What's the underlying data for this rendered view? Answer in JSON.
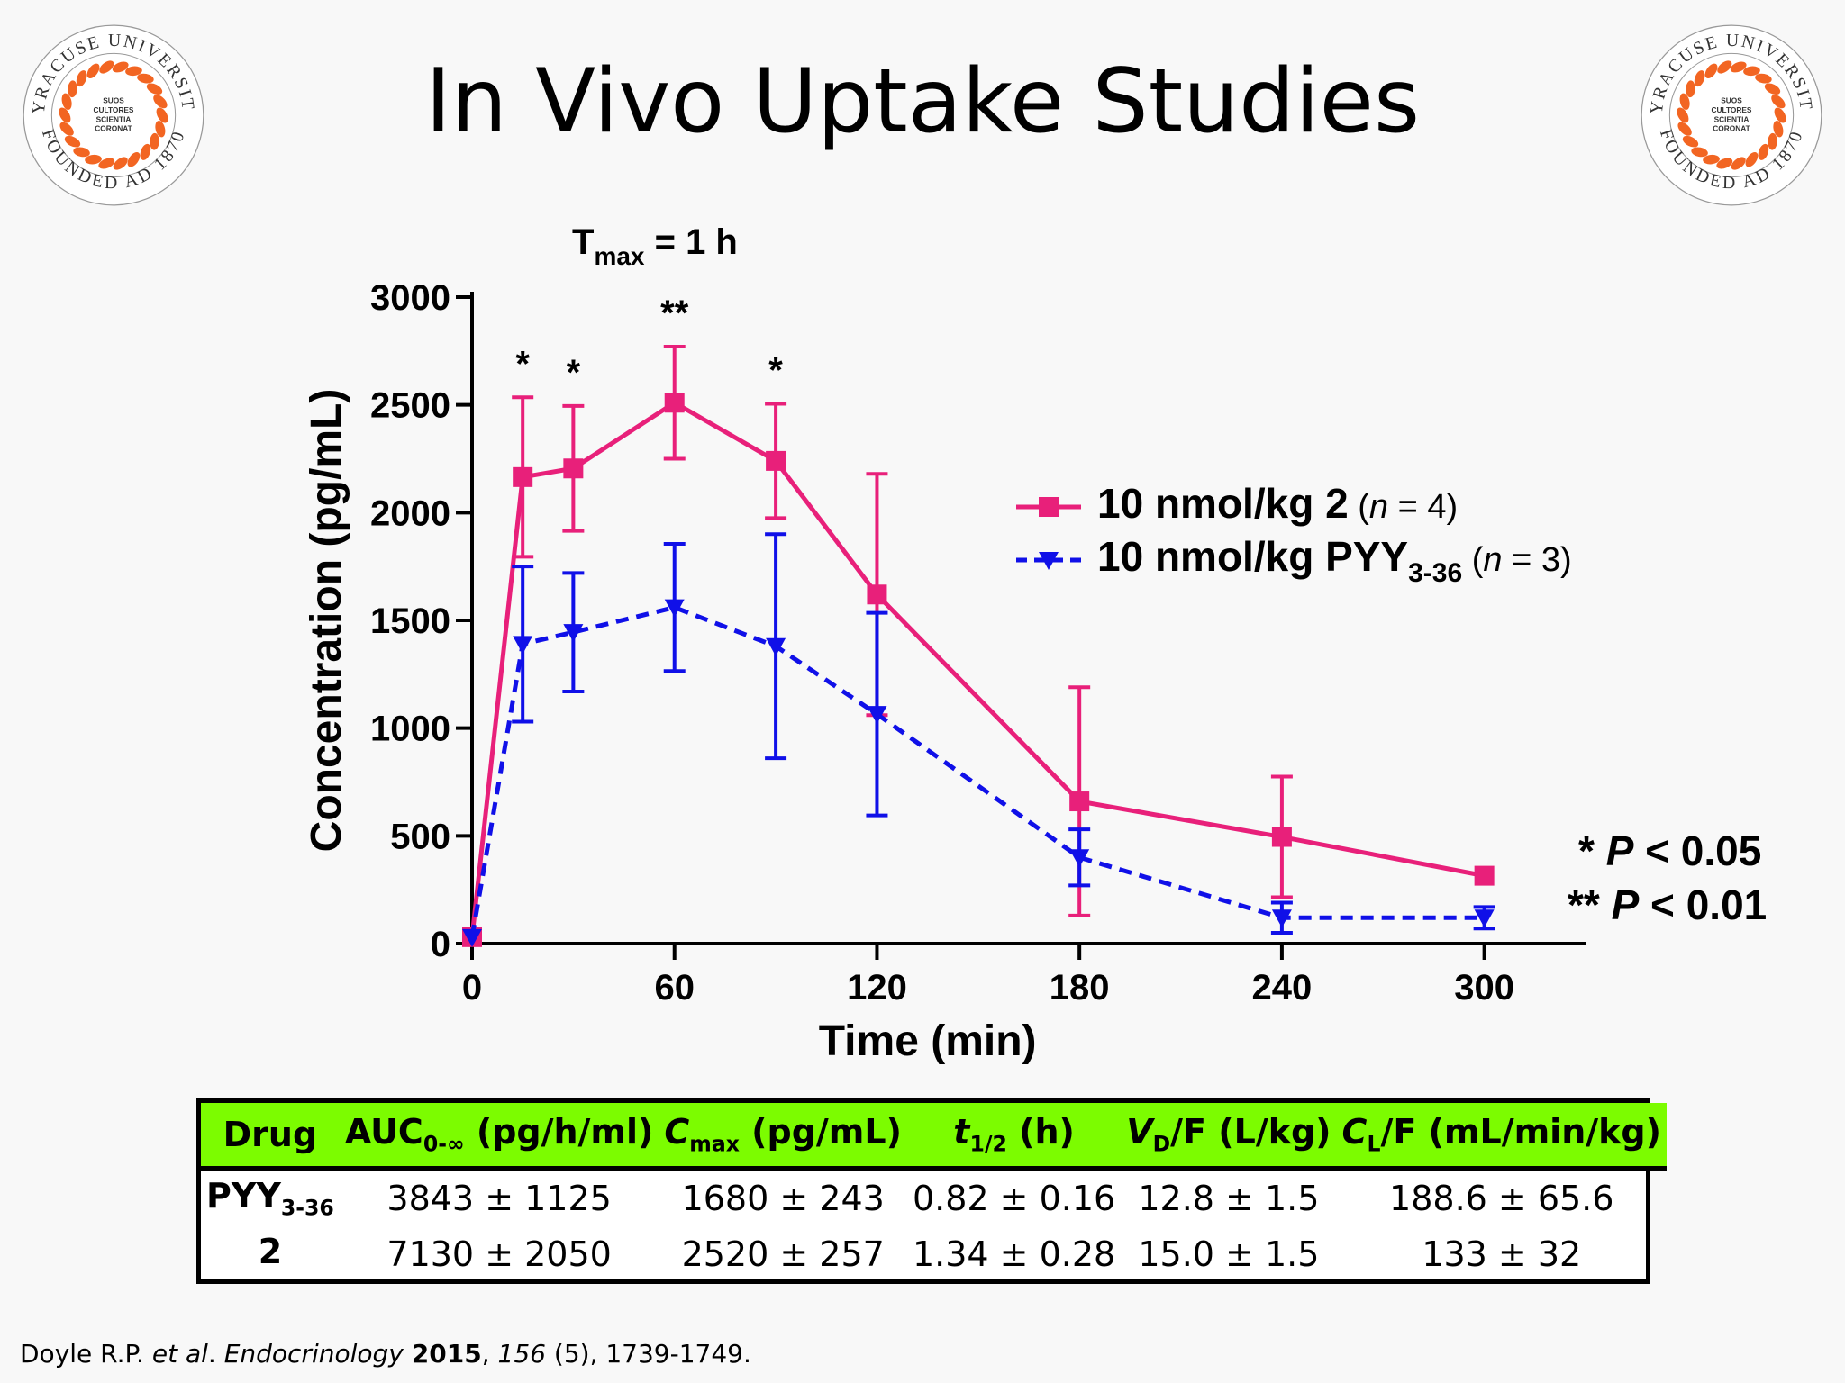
{
  "slide": {
    "title": "In Vivo Uptake Studies",
    "seal": {
      "top_text": "SYRACUSE UNIVERSITY",
      "bottom_text": "FOUNDED AD 1870",
      "center_lines": [
        "SUOS",
        "CULTORES",
        "SCIENTIA",
        "CORONAT"
      ]
    }
  },
  "chart_data": {
    "type": "line",
    "annotation_tmax": "T",
    "annotation_tmax_sub": "max",
    "annotation_tmax_rest": " = 1 h",
    "xlabel": "Time (min)",
    "ylabel": "Concentration (pg/mL)",
    "xlim": [
      0,
      330
    ],
    "ylim": [
      0,
      3000
    ],
    "xticks": [
      0,
      60,
      120,
      180,
      240,
      300
    ],
    "yticks": [
      0,
      500,
      1000,
      1500,
      2000,
      2500,
      3000
    ],
    "series": [
      {
        "name_main": "10 nmol/kg 2",
        "name_n": "n",
        "name_n_value": " = 4)",
        "color": "#e8207a",
        "line": "solid",
        "marker": "square",
        "x": [
          0,
          15,
          30,
          60,
          90,
          120,
          180,
          240,
          300
        ],
        "y": [
          30,
          2165,
          2205,
          2510,
          2240,
          1620,
          660,
          495,
          315
        ],
        "err": [
          0,
          370,
          290,
          260,
          265,
          560,
          530,
          280,
          0
        ]
      },
      {
        "name_main": "10 nmol/kg PYY",
        "name_sub": "3-36",
        "name_n": "n",
        "name_n_value": " = 3)",
        "color": "#1010e8",
        "line": "dashed",
        "marker": "triangle-down",
        "x": [
          0,
          15,
          30,
          60,
          90,
          120,
          180,
          240,
          300
        ],
        "y": [
          30,
          1390,
          1445,
          1560,
          1380,
          1065,
          400,
          120,
          120
        ],
        "err": [
          0,
          360,
          275,
          295,
          520,
          470,
          130,
          70,
          50
        ]
      }
    ],
    "significance": [
      {
        "x": 15,
        "label": "*"
      },
      {
        "x": 30,
        "label": "*"
      },
      {
        "x": 60,
        "label": "**"
      },
      {
        "x": 90,
        "label": "*"
      }
    ],
    "pvalues": [
      {
        "stars": "*",
        "text": "P",
        "rest": " < 0.05"
      },
      {
        "stars": "**",
        "text": "P",
        "rest": " < 0.01"
      }
    ]
  },
  "table": {
    "headers": [
      {
        "main": "Drug"
      },
      {
        "main": "AUC",
        "sub": "0-∞",
        "rest": " (pg/h/ml)"
      },
      {
        "main": "C",
        "sub": "max",
        "rest": " (pg/mL)",
        "italic": true
      },
      {
        "main": "t",
        "sub": "1/2",
        "rest": " (h)",
        "italic": true
      },
      {
        "main": "V",
        "sub": "D",
        "rest": "/F (L/kg)",
        "italic": true
      },
      {
        "main": "C",
        "sub": "L",
        "rest": "/F (mL/min/kg)",
        "italic": true
      }
    ],
    "rows": [
      {
        "drug": "PYY",
        "drug_sub": "3-36",
        "auc": "3843 ± 1125",
        "cmax": "1680 ± 243",
        "thalf": "0.82 ± 0.16",
        "vdf": "12.8 ± 1.5",
        "clf": "188.6 ± 65.6"
      },
      {
        "drug": "2",
        "drug_sub": "",
        "auc": "7130 ± 2050",
        "cmax": "2520 ± 257",
        "thalf": "1.34 ± 0.28",
        "vdf": "15.0 ± 1.5",
        "clf": "133 ± 32"
      }
    ]
  },
  "citation": {
    "authors": "Doyle R.P. ",
    "etal": "et al",
    "journal_pre": ". ",
    "journal": "Endocrinology",
    "year": "2015",
    "volume": "156",
    "rest": " (5), 1739-1749."
  }
}
